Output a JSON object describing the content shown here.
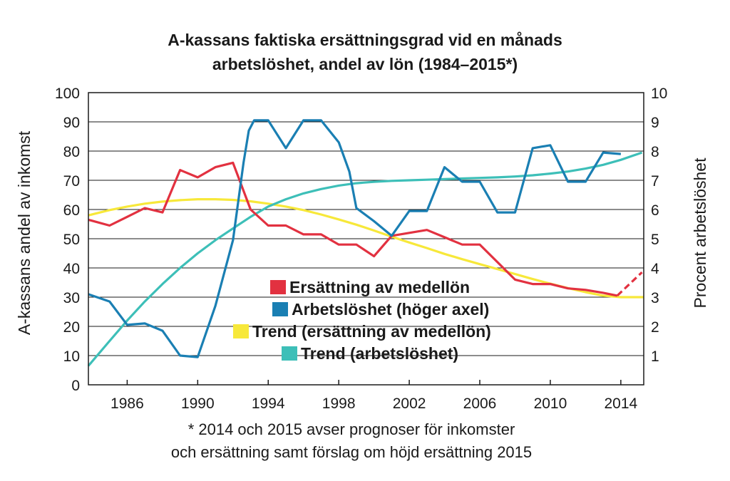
{
  "chart_data": {
    "type": "line",
    "title_line1": "A-kassans faktiska ersättningsgrad vid en månads",
    "title_line2": "arbetslöshet, andel av lön (1984–2015*)",
    "ylabel_left": "A-kassans andel av inkomst",
    "ylabel_right": "Procent arbetslöshet",
    "xlim": [
      1983.8,
      2015.3
    ],
    "ylim_left": [
      0,
      100
    ],
    "ylim_right": [
      0,
      10
    ],
    "x_ticks": [
      "1986",
      "1990",
      "1994",
      "1998",
      "2002",
      "2006",
      "2010",
      "2014"
    ],
    "y_left_ticks": [
      "0",
      "10",
      "20",
      "30",
      "40",
      "50",
      "60",
      "70",
      "80",
      "90",
      "100"
    ],
    "y_right_ticks": [
      "1",
      "2",
      "3",
      "4",
      "5",
      "6",
      "7",
      "8",
      "9",
      "10"
    ],
    "grid": true,
    "legend": [
      {
        "label": "Ersättning av medellön",
        "color": "#e23140"
      },
      {
        "label": "Arbetslöshet (höger axel)",
        "color": "#1a7fb3"
      },
      {
        "label": "Trend (ersättning av medellön)",
        "color": "#f7e83a"
      },
      {
        "label": "Trend (arbetslöshet)",
        "color": "#3dbfb8"
      }
    ],
    "series": [
      {
        "name": "Ersättning av medellön",
        "axis": "left",
        "color": "#e23140",
        "x": [
          1983.8,
          1985,
          1986,
          1987,
          1988,
          1989,
          1990,
          1991,
          1992,
          1993,
          1994,
          1995,
          1996,
          1997,
          1998,
          1999,
          2000,
          2001,
          2002,
          2003,
          2004,
          2005,
          2006,
          2007,
          2008,
          2009,
          2010,
          2011,
          2012,
          2013,
          2013.8
        ],
        "values": [
          56.5,
          54.5,
          57.5,
          60.5,
          59,
          73.5,
          71,
          74.5,
          76,
          60,
          54.5,
          54.5,
          51.5,
          51.5,
          48,
          48,
          44,
          51,
          52,
          53,
          50.5,
          48,
          48,
          42,
          36,
          34.5,
          34.5,
          33,
          32.5,
          31.5,
          30.5
        ]
      },
      {
        "name": "Prognos / förslag 2015",
        "axis": "left",
        "color": "#e23140",
        "dashed": true,
        "x": [
          2013.8,
          2015.2
        ],
        "values": [
          30.5,
          38.5
        ]
      },
      {
        "name": "Arbetslöshet (höger axel)",
        "axis": "right",
        "color": "#1a7fb3",
        "x": [
          1983.8,
          1985,
          1986,
          1987,
          1988,
          1989,
          1990,
          1991,
          1992,
          1992.6,
          1992.9,
          1993.2,
          1994,
          1995,
          1996,
          1997,
          1998,
          1998.6,
          1999,
          2000,
          2001,
          2002,
          2003,
          2004,
          2005,
          2006,
          2007,
          2008,
          2009,
          2010,
          2011,
          2012,
          2013,
          2014
        ],
        "values": [
          3.1,
          2.85,
          2.05,
          2.1,
          1.85,
          1.0,
          0.95,
          2.7,
          4.95,
          7.6,
          8.7,
          9.05,
          9.05,
          8.1,
          9.05,
          9.05,
          8.3,
          7.3,
          6.05,
          5.6,
          5.1,
          5.95,
          5.95,
          7.45,
          6.95,
          6.95,
          5.9,
          5.9,
          8.1,
          8.2,
          6.95,
          6.95,
          7.95,
          7.9
        ]
      },
      {
        "name": "Trend (ersättning av medellön)",
        "axis": "left",
        "color": "#f7e83a",
        "x": [
          1983.8,
          1985,
          1986,
          1987,
          1988,
          1989,
          1990,
          1991,
          1992,
          1993,
          1994,
          1995,
          1996,
          1997,
          1998,
          1999,
          2000,
          2001,
          2002,
          2003,
          2004,
          2005,
          2006,
          2007,
          2008,
          2009,
          2010,
          2011,
          2012,
          2013,
          2014,
          2015.3
        ],
        "values": [
          58,
          59.8,
          61,
          62,
          62.7,
          63.2,
          63.5,
          63.5,
          63.3,
          62.8,
          62,
          61,
          59.8,
          58.3,
          56.6,
          54.8,
          52.8,
          50.7,
          48.7,
          46.8,
          44.8,
          43,
          41.3,
          39.6,
          37.9,
          36.2,
          34.6,
          33.1,
          31.7,
          30.5,
          30,
          30
        ]
      },
      {
        "name": "Trend (arbetslöshet)",
        "axis": "left",
        "color": "#3dbfb8",
        "x": [
          1983.8,
          1985,
          1986,
          1987,
          1988,
          1989,
          1990,
          1991,
          1992,
          1993,
          1994,
          1995,
          1996,
          1997,
          1998,
          1999,
          2000,
          2001,
          2002,
          2003,
          2004,
          2005,
          2006,
          2007,
          2008,
          2009,
          2010,
          2011,
          2012,
          2013,
          2014,
          2015.2
        ],
        "values": [
          6.5,
          15,
          22,
          28.5,
          34.5,
          40,
          45,
          49.5,
          53.5,
          57.5,
          61,
          63.5,
          65.5,
          67,
          68.2,
          69,
          69.5,
          69.8,
          70,
          70.2,
          70.4,
          70.6,
          70.8,
          71,
          71.3,
          71.7,
          72.3,
          73,
          74,
          75.3,
          77,
          79.5
        ]
      }
    ]
  },
  "footnote_line1": "* 2014 och 2015 avser prognoser för inkomster",
  "footnote_line2": "och ersättning samt förslag om höjd ersättning 2015"
}
